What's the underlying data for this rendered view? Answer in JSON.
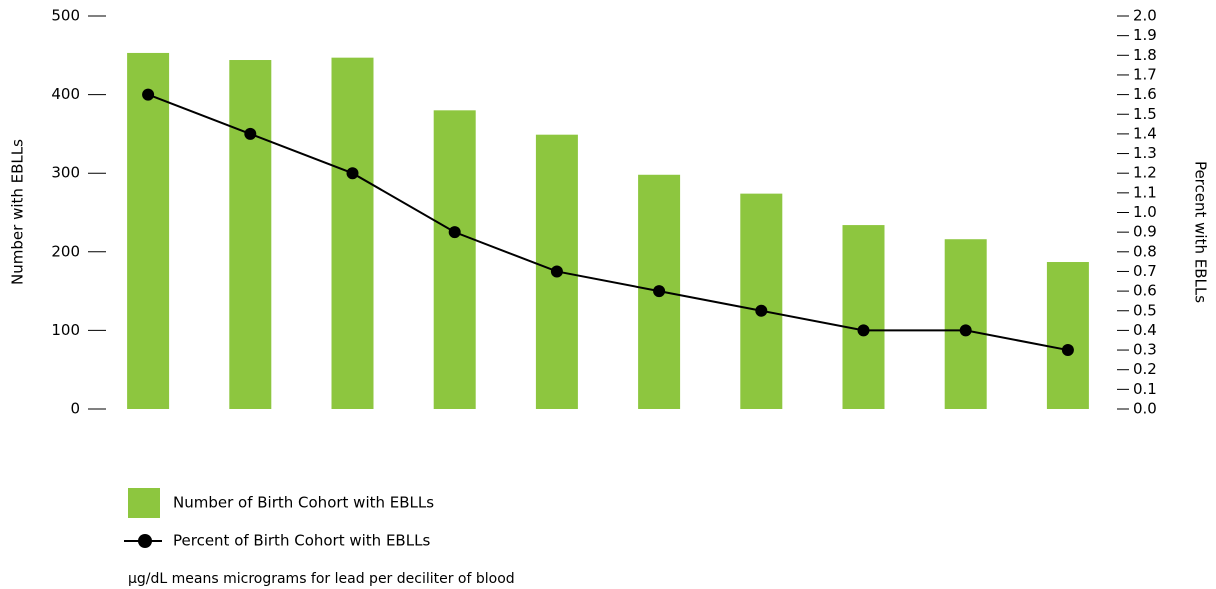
{
  "chart_data": {
    "type": "bar-line",
    "categories": [
      null,
      null,
      null,
      null,
      null,
      null,
      null,
      null,
      null,
      null
    ],
    "y_label": "Number with EBLLs",
    "y2_label": "Percent with EBLLs",
    "series": [
      {
        "name": "Number of Birth Cohort with EBLLs",
        "type": "bar",
        "color": "#8dc63f",
        "values": [
          453,
          444,
          447,
          380,
          349,
          298,
          274,
          234,
          216,
          187
        ]
      },
      {
        "name": "Percent of Birth Cohort with EBLLs",
        "type": "line",
        "axis": "y2",
        "color": "#000000",
        "values": [
          1.6,
          1.4,
          1.2,
          0.9,
          0.7,
          0.6,
          0.5,
          0.4,
          0.4,
          0.3
        ]
      }
    ],
    "ylim": [
      0,
      500
    ],
    "yticks": [
      0,
      100,
      200,
      300,
      400,
      500
    ],
    "y2lim": [
      0,
      2
    ],
    "y2ticks": [
      {
        "value": 0,
        "label": "0.0"
      },
      0.1,
      0.2,
      0.3,
      0.4,
      0.5,
      0.6,
      0.7,
      0.8,
      0.9,
      {
        "value": 1,
        "label": "1.0"
      },
      1.1,
      1.2,
      1.3,
      1.4,
      1.5,
      1.6,
      1.7,
      1.8,
      1.9,
      {
        "value": 2,
        "label": "2.0"
      }
    ],
    "note": "µg/dL means micrograms for lead per deciliter of blood"
  }
}
